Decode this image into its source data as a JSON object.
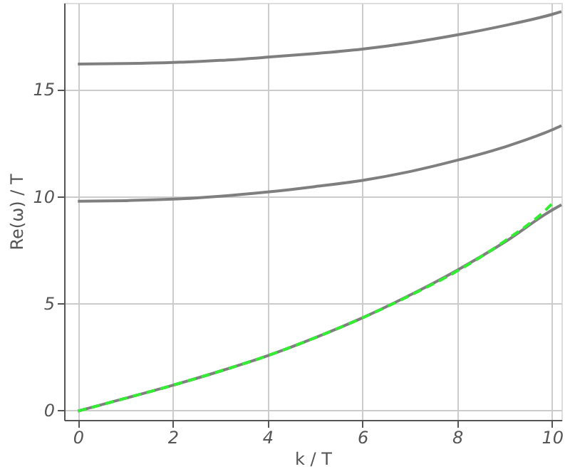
{
  "chart_data": {
    "type": "line",
    "xlabel": "k / T",
    "ylabel": "Re(ω) / T",
    "xlim": [
      -0.29,
      10.2
    ],
    "ylim": [
      -0.46,
      19.04
    ],
    "xticks": [
      0,
      2,
      4,
      6,
      8,
      10
    ],
    "yticks": [
      0,
      5,
      10,
      15
    ],
    "grid": true,
    "marker": "none",
    "series": [
      {
        "color": "#7f7f7f",
        "line_style": "solid",
        "x": [
          0,
          1,
          2,
          3,
          4,
          5,
          6,
          7,
          8,
          9,
          10,
          10.2
        ],
        "values": [
          16.18,
          16.2,
          16.25,
          16.35,
          16.5,
          16.67,
          16.88,
          17.17,
          17.54,
          17.98,
          18.5,
          18.63
        ]
      },
      {
        "color": "#7f7f7f",
        "line_style": "solid",
        "x": [
          0,
          1,
          2,
          3,
          4,
          5,
          6,
          7,
          8,
          9,
          10,
          10.2
        ],
        "values": [
          9.76,
          9.79,
          9.86,
          10.0,
          10.2,
          10.45,
          10.74,
          11.15,
          11.68,
          12.3,
          13.1,
          13.3
        ]
      },
      {
        "color": "#7f7f7f",
        "line_style": "solid",
        "x": [
          0,
          1,
          2,
          3,
          4,
          5,
          6,
          7,
          8,
          9,
          10,
          10.2
        ],
        "values": [
          -0.05,
          0.55,
          1.16,
          1.82,
          2.54,
          3.38,
          4.31,
          5.37,
          6.54,
          7.85,
          9.35,
          9.6
        ]
      },
      {
        "color": "#33ee33",
        "line_style": "dashed",
        "x": [
          0,
          1,
          2,
          3,
          4,
          5,
          6,
          7,
          8,
          9,
          10,
          10.05
        ],
        "values": [
          -0.05,
          0.55,
          1.16,
          1.82,
          2.54,
          3.38,
          4.31,
          5.35,
          6.5,
          7.9,
          9.65,
          9.77
        ]
      }
    ]
  }
}
